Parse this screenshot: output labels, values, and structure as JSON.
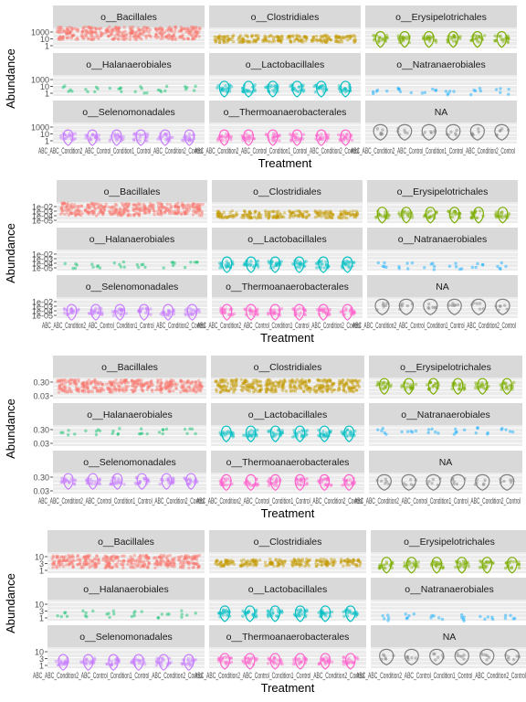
{
  "chart_data": [
    {
      "type": "scatter",
      "subtype": "faceted-violin-jitter",
      "xlabel": "Treatment",
      "ylabel": "Abundance",
      "x_tick_text": "ABC_ABC_Condition2_ABC_Control_Condition1_Control_ABC_Condition2_Control",
      "y_scale": "log",
      "y_ticks": [
        "1000",
        "10",
        "1"
      ],
      "facets": [
        {
          "name": "o__Bacillales",
          "color": "#F8766D",
          "level": 0.72,
          "density": "heavy"
        },
        {
          "name": "o__Clostridiales",
          "color": "#C49A00",
          "level": 0.45,
          "density": "medium"
        },
        {
          "name": "o__Erysipelotrichales",
          "color": "#7CAE00",
          "level": 0.45,
          "density": "light"
        },
        {
          "name": "o__Halanaerobiales",
          "color": "#00BE67",
          "level": 0.3,
          "density": "sparse"
        },
        {
          "name": "o__Lactobacillales",
          "color": "#00BFC4",
          "level": 0.35,
          "density": "light"
        },
        {
          "name": "o__Natranaerobiales",
          "color": "#00A9FF",
          "level": 0.2,
          "density": "sparse"
        },
        {
          "name": "o__Selenomonadales",
          "color": "#C77CFF",
          "level": 0.3,
          "density": "light"
        },
        {
          "name": "o__Thermoanaerobacterales",
          "color": "#FF61CC",
          "level": 0.3,
          "density": "light"
        },
        {
          "name": "NA",
          "color": "#7F7F7F",
          "level": 0.55,
          "density": "violin"
        }
      ]
    },
    {
      "type": "scatter",
      "subtype": "faceted-violin-jitter",
      "xlabel": "Treatment",
      "ylabel": "Abundance",
      "x_tick_text": "ABC_ABC_Condition2_ABC_Control_Condition1_Control_ABC_Condition2_Control",
      "y_scale": "log",
      "y_ticks": [
        "1e-02",
        "1e-03",
        "1e-04",
        "1e-05"
      ],
      "facets": [
        {
          "name": "o__Bacillales",
          "color": "#F8766D",
          "level": 0.65,
          "density": "heavy"
        },
        {
          "name": "o__Clostridiales",
          "color": "#C49A00",
          "level": 0.4,
          "density": "medium"
        },
        {
          "name": "o__Erysipelotrichales",
          "color": "#7CAE00",
          "level": 0.4,
          "density": "light"
        },
        {
          "name": "o__Halanaerobiales",
          "color": "#00BE67",
          "level": 0.25,
          "density": "sparse"
        },
        {
          "name": "o__Lactobacillales",
          "color": "#00BFC4",
          "level": 0.3,
          "density": "light"
        },
        {
          "name": "o__Natranaerobiales",
          "color": "#00A9FF",
          "level": 0.2,
          "density": "sparse"
        },
        {
          "name": "o__Selenomonadales",
          "color": "#C77CFF",
          "level": 0.3,
          "density": "light"
        },
        {
          "name": "o__Thermoanaerobacterales",
          "color": "#FF61CC",
          "level": 0.3,
          "density": "light"
        },
        {
          "name": "NA",
          "color": "#7F7F7F",
          "level": 0.55,
          "density": "violin"
        }
      ]
    },
    {
      "type": "scatter",
      "subtype": "faceted-violin-jitter",
      "xlabel": "Treatment",
      "ylabel": "Abundance",
      "x_tick_text": "ABC_ABC_Condition2_ABC_Control_Condition1_Control_ABC_Condition2_Control",
      "y_scale": "log",
      "y_ticks": [
        "0.30",
        "0.03"
      ],
      "facets": [
        {
          "name": "o__Bacillales",
          "color": "#F8766D",
          "level": 0.6,
          "density": "heavy"
        },
        {
          "name": "o__Clostridiales",
          "color": "#C49A00",
          "level": 0.6,
          "density": "heavy"
        },
        {
          "name": "o__Erysipelotrichales",
          "color": "#7CAE00",
          "level": 0.6,
          "density": "light"
        },
        {
          "name": "o__Halanaerobiales",
          "color": "#00BE67",
          "level": 0.7,
          "density": "sparse"
        },
        {
          "name": "o__Lactobacillales",
          "color": "#00BFC4",
          "level": 0.6,
          "density": "light"
        },
        {
          "name": "o__Natranaerobiales",
          "color": "#00A9FF",
          "level": 0.7,
          "density": "sparse"
        },
        {
          "name": "o__Selenomonadales",
          "color": "#C77CFF",
          "level": 0.6,
          "density": "light"
        },
        {
          "name": "o__Thermoanaerobacterales",
          "color": "#FF61CC",
          "level": 0.55,
          "density": "light"
        },
        {
          "name": "NA",
          "color": "#7F7F7F",
          "level": 0.55,
          "density": "violin"
        }
      ]
    },
    {
      "type": "scatter",
      "subtype": "faceted-violin-jitter",
      "xlabel": "Treatment",
      "ylabel": "Abundance",
      "x_tick_text": "ABC_ABC_Condition2_ABC_Control_Condition1_Control_ABC_Condition2_Control",
      "y_scale": "log",
      "y_ticks": [
        "10",
        "3",
        "1"
      ],
      "facets": [
        {
          "name": "o__Bacillales",
          "color": "#F8766D",
          "level": 0.55,
          "density": "heavy"
        },
        {
          "name": "o__Clostridiales",
          "color": "#C49A00",
          "level": 0.5,
          "density": "medium"
        },
        {
          "name": "o__Erysipelotrichales",
          "color": "#7CAE00",
          "level": 0.4,
          "density": "light"
        },
        {
          "name": "o__Halanaerobiales",
          "color": "#00BE67",
          "level": 0.3,
          "density": "sparse"
        },
        {
          "name": "o__Lactobacillales",
          "color": "#00BFC4",
          "level": 0.35,
          "density": "light"
        },
        {
          "name": "o__Natranaerobiales",
          "color": "#00A9FF",
          "level": 0.15,
          "density": "sparse"
        },
        {
          "name": "o__Selenomonadales",
          "color": "#C77CFF",
          "level": 0.3,
          "density": "light"
        },
        {
          "name": "o__Thermoanaerobacterales",
          "color": "#FF61CC",
          "level": 0.35,
          "density": "light"
        },
        {
          "name": "NA",
          "color": "#7F7F7F",
          "level": 0.55,
          "density": "violin"
        }
      ]
    }
  ]
}
